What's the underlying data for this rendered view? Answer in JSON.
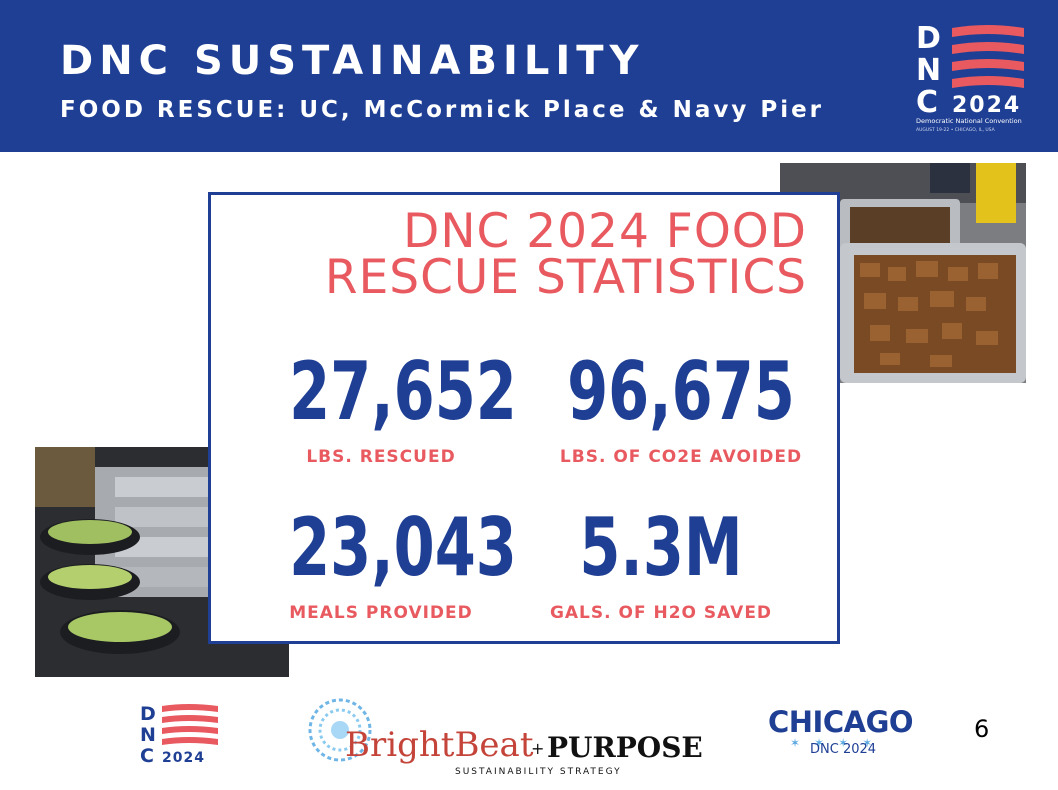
{
  "header": {
    "title": "DNC SUSTAINABILITY",
    "subtitle": "FOOD RESCUE: UC, McCormick Place & Navy Pier",
    "logo": {
      "letters": [
        "D",
        "N",
        "C"
      ],
      "year": "2024",
      "caption": "Democratic National Convention",
      "dates": "AUGUST 19-22 • CHICAGO, IL, USA"
    }
  },
  "card": {
    "title_line1": "DNC 2024 FOOD",
    "title_line2": "RESCUE STATISTICS",
    "stats": [
      {
        "value": "27,652",
        "label": "LBS. RESCUED"
      },
      {
        "value": "96,675",
        "label": "LBS. OF CO2E AVOIDED"
      },
      {
        "value": "23,043",
        "label": "MEALS PROVIDED"
      },
      {
        "value": "5.3M",
        "label": "GALS. OF H2O SAVED"
      }
    ]
  },
  "footer": {
    "dnc_logo": {
      "letters": [
        "D",
        "N",
        "C"
      ],
      "year": "2024"
    },
    "brightbeat": {
      "name": "BrightBeat",
      "plus": "+",
      "purpose": "PURPOSE",
      "tagline": "SUSTAINABILITY STRATEGY"
    },
    "chicago": {
      "name": "CHICAGO",
      "sub": "DNC 2024"
    },
    "page_number": "6"
  },
  "colors": {
    "navy": "#1f3f94",
    "red": "#e85a5f",
    "white": "#ffffff"
  }
}
